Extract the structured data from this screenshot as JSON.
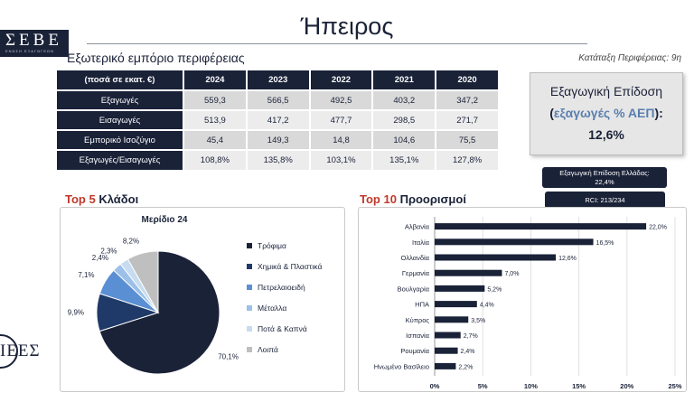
{
  "header": {
    "logo_text": "ΣΕΒΕ",
    "logo_tagline": "ΕΝΩΣΗ ΕΞΑΓΩΓΕΩΝ",
    "title": "Ήπειρος",
    "section_title": "Εξωτερικό εμπόριο περιφέρειας",
    "rank_note": "Κατάταξη Περιφέρειας: 9η"
  },
  "trade_table": {
    "corner": "(ποσά σε εκατ. €)",
    "years": [
      "2024",
      "2023",
      "2022",
      "2021",
      "2020"
    ],
    "rows": [
      {
        "label": "Εξαγωγές",
        "values": [
          "559,3",
          "566,5",
          "492,5",
          "403,2",
          "347,2"
        ]
      },
      {
        "label": "Εισαγωγές",
        "values": [
          "513,9",
          "417,2",
          "477,7",
          "298,5",
          "271,7"
        ]
      },
      {
        "label": "Εμπορικό Ισοζύγιο",
        "values": [
          "45,4",
          "149,3",
          "14,8",
          "104,6",
          "75,5"
        ]
      },
      {
        "label": "Εξαγωγές/Εισαγωγές",
        "values": [
          "108,8%",
          "135,8%",
          "103,1%",
          "135,1%",
          "127,8%"
        ]
      }
    ]
  },
  "intensity": {
    "line1": "Εξαγωγική Επίδοση",
    "line2_open": "(",
    "line2": "εξαγωγές % ΑΕΠ",
    "line2_close": "):",
    "value": "12,6%"
  },
  "greece_box": {
    "line1": "Εξαγωγική Επίδοση Ελλάδας:",
    "line2": "22,4%"
  },
  "rci_box": "RCI: 213/234",
  "sectors": {
    "head_red": "Top 5",
    "head": "Κλάδοι"
  },
  "destinations": {
    "head_red": "Top 10",
    "head": "Προορισμοί"
  },
  "footer_logo": "ΙΕΕΣ",
  "colors": {
    "navy": "#1a2238",
    "blue": "#5b8fd4",
    "lightblue": "#9cc0e8",
    "paleblue": "#c7dcf0",
    "grey": "#bfbfbf",
    "accent_red": "#c0392b"
  },
  "chart_data": [
    {
      "type": "pie",
      "title": "Μερίδιο 24",
      "labels": [
        "Τρόφιμα",
        "Χημικά & Πλαστικά",
        "Πετρελαιοειδή",
        "Μέταλλα",
        "Ποτά & Καπνά",
        "Λοιπά"
      ],
      "values": [
        70.1,
        9.9,
        7.1,
        2.4,
        2.3,
        8.2
      ],
      "value_labels": [
        "70,1%",
        "9,9%",
        "7,1%",
        "2,4%",
        "2,3%",
        "8,2%"
      ],
      "colors": [
        "#1a2238",
        "#1f3a68",
        "#5b8fd4",
        "#9cc0e8",
        "#c7dcf0",
        "#bfbfbf"
      ],
      "legend": "right"
    },
    {
      "type": "bar",
      "orientation": "horizontal",
      "categories": [
        "Αλβανία",
        "Ιταλία",
        "Ολλανδία",
        "Γερμανία",
        "Βουλγαρία",
        "ΗΠΑ",
        "Κύπρος",
        "Ισπανία",
        "Ρουμανία",
        "Ηνωμένο Βασίλειο"
      ],
      "values": [
        22.0,
        16.5,
        12.6,
        7.0,
        5.2,
        4.4,
        3.5,
        2.7,
        2.4,
        2.2
      ],
      "value_labels": [
        "22,0%",
        "16,5%",
        "12,6%",
        "7,0%",
        "5,2%",
        "4,4%",
        "3,5%",
        "2,7%",
        "2,4%",
        "2,2%"
      ],
      "xlim": [
        0,
        25
      ],
      "xticks": [
        "0%",
        "5%",
        "10%",
        "15%",
        "20%",
        "25%"
      ],
      "grid": true
    }
  ]
}
